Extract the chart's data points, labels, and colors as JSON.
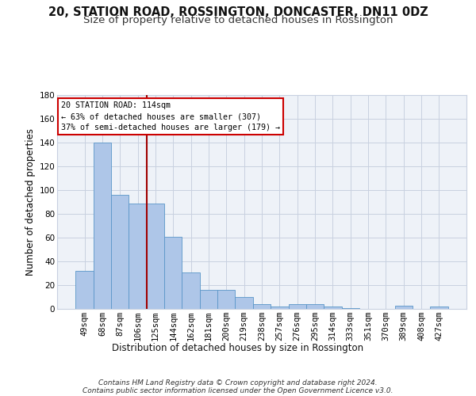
{
  "title1": "20, STATION ROAD, ROSSINGTON, DONCASTER, DN11 0DZ",
  "title2": "Size of property relative to detached houses in Rossington",
  "xlabel": "Distribution of detached houses by size in Rossington",
  "ylabel": "Number of detached properties",
  "categories": [
    "49sqm",
    "68sqm",
    "87sqm",
    "106sqm",
    "125sqm",
    "144sqm",
    "162sqm",
    "181sqm",
    "200sqm",
    "219sqm",
    "238sqm",
    "257sqm",
    "276sqm",
    "295sqm",
    "314sqm",
    "333sqm",
    "351sqm",
    "370sqm",
    "389sqm",
    "408sqm",
    "427sqm"
  ],
  "values": [
    32,
    140,
    96,
    89,
    89,
    61,
    31,
    16,
    16,
    10,
    4,
    2,
    4,
    4,
    2,
    1,
    0,
    0,
    3,
    0,
    2
  ],
  "bar_color": "#aec6e8",
  "bar_edge_color": "#5a96c8",
  "vline_x": 3.5,
  "vline_color": "#a00000",
  "ylim": [
    0,
    180
  ],
  "yticks": [
    0,
    20,
    40,
    60,
    80,
    100,
    120,
    140,
    160,
    180
  ],
  "annotation_title": "20 STATION ROAD: 114sqm",
  "annotation_line1": "← 63% of detached houses are smaller (307)",
  "annotation_line2": "37% of semi-detached houses are larger (179) →",
  "annotation_box_color": "#ffffff",
  "annotation_box_edge": "#cc0000",
  "footer1": "Contains HM Land Registry data © Crown copyright and database right 2024.",
  "footer2": "Contains public sector information licensed under the Open Government Licence v3.0.",
  "bg_color": "#eef2f8",
  "grid_color": "#c8d0e0",
  "title_fontsize": 10.5,
  "subtitle_fontsize": 9.5,
  "tick_fontsize": 7.5,
  "ylabel_fontsize": 8.5,
  "xlabel_fontsize": 8.5,
  "footer_fontsize": 6.5
}
